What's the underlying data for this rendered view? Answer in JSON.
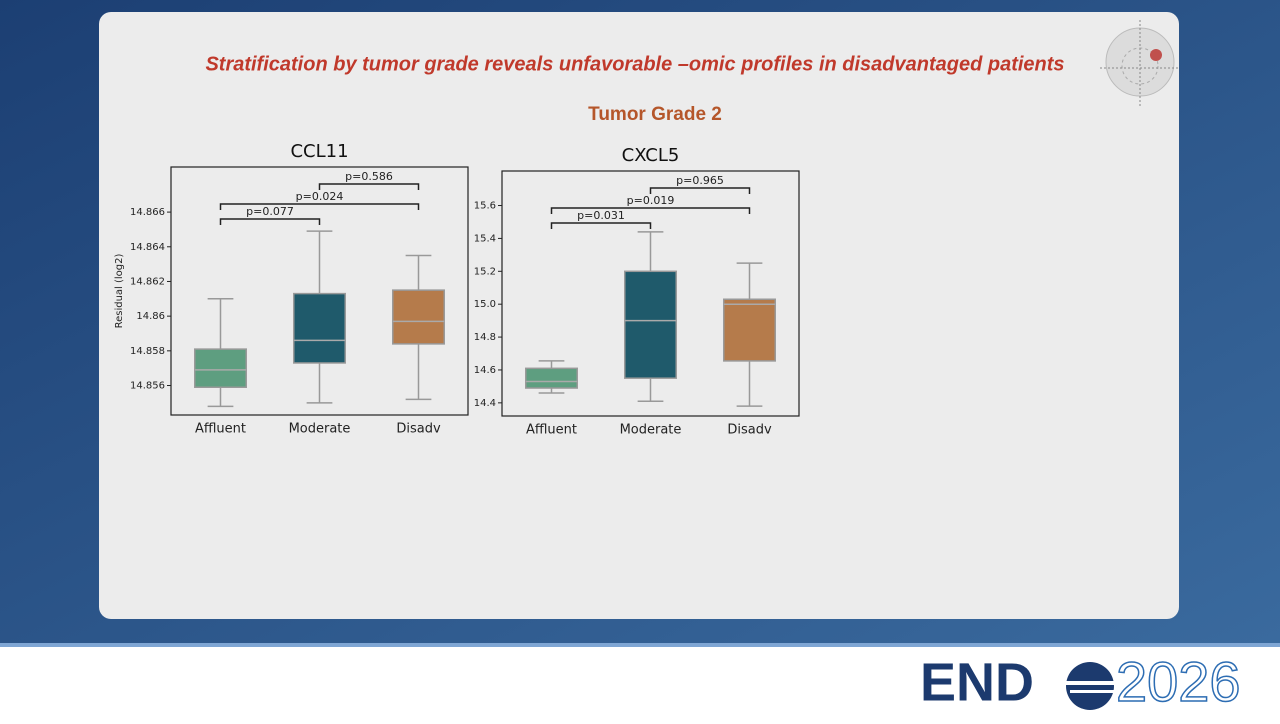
{
  "slide": {
    "title": "Stratification by tumor grade reveals unfavorable –omic profiles in disadvantaged patients",
    "subtitle": "Tumor Grade 2"
  },
  "footer": {
    "logo_left": "END",
    "logo_right": "2026"
  },
  "chart_data": [
    {
      "type": "box",
      "title": "CCL11",
      "y_label": "Residual (log2)",
      "categories": [
        "Affluent",
        "Moderate",
        "Disadv"
      ],
      "colors": [
        "#5e9e80",
        "#1f5a6b",
        "#b57b4b"
      ],
      "boxes": [
        {
          "low": 14.8548,
          "q1": 14.8559,
          "median": 14.8569,
          "q3": 14.8581,
          "high": 14.861
        },
        {
          "low": 14.855,
          "q1": 14.8573,
          "median": 14.8586,
          "q3": 14.8613,
          "high": 14.8649
        },
        {
          "low": 14.8552,
          "q1": 14.8584,
          "median": 14.8597,
          "q3": 14.8615,
          "high": 14.8635
        }
      ],
      "annotations": [
        "p=0.077",
        "p=0.024",
        "p=0.586"
      ],
      "ylim": [
        14.8543,
        14.8686
      ],
      "yticks": [
        14.856,
        14.858,
        14.86,
        14.862,
        14.864,
        14.866
      ]
    },
    {
      "type": "box",
      "title": "CXCL5",
      "categories": [
        "Affluent",
        "Moderate",
        "Disadv"
      ],
      "colors": [
        "#5e9e80",
        "#1f5a6b",
        "#b57b4b"
      ],
      "boxes": [
        {
          "low": 14.46,
          "q1": 14.49,
          "median": 14.53,
          "q3": 14.61,
          "high": 14.655
        },
        {
          "low": 14.41,
          "q1": 14.55,
          "median": 14.9,
          "q3": 15.2,
          "high": 15.44
        },
        {
          "low": 14.38,
          "q1": 14.655,
          "median": 15.0,
          "q3": 15.03,
          "high": 15.25
        }
      ],
      "annotations": [
        "p=0.031",
        "p=0.019",
        "p=0.965"
      ],
      "ylim": [
        14.32,
        15.81
      ],
      "yticks": [
        14.4,
        14.6,
        14.8,
        {
          "value": 15,
          "label": "15.0"
        },
        15.2,
        15.4,
        15.6
      ]
    }
  ]
}
